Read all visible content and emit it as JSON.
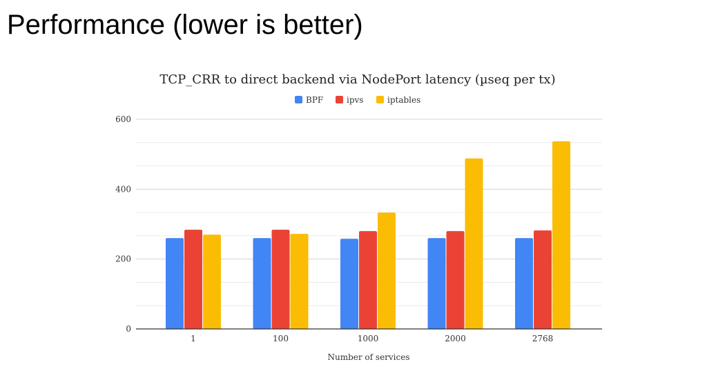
{
  "slide_title": "Performance (lower is better)",
  "chart_data": {
    "type": "bar",
    "title": "TCP_CRR to direct backend via NodePort latency (µseq per tx)",
    "xlabel": "Number of services",
    "ylabel": "",
    "categories": [
      "1",
      "100",
      "1000",
      "2000",
      "2768"
    ],
    "series": [
      {
        "name": "BPF",
        "color": "#4285f4",
        "values": [
          260,
          260,
          258,
          260,
          260
        ]
      },
      {
        "name": "ipvs",
        "color": "#ea4335",
        "values": [
          284,
          284,
          280,
          280,
          282
        ]
      },
      {
        "name": "iptables",
        "color": "#fbbc04",
        "values": [
          270,
          272,
          333,
          488,
          537
        ]
      }
    ],
    "ylim": [
      0,
      600
    ],
    "yticks": [
      "0",
      "200",
      "400",
      "600"
    ],
    "grid": true,
    "legend": "top"
  }
}
